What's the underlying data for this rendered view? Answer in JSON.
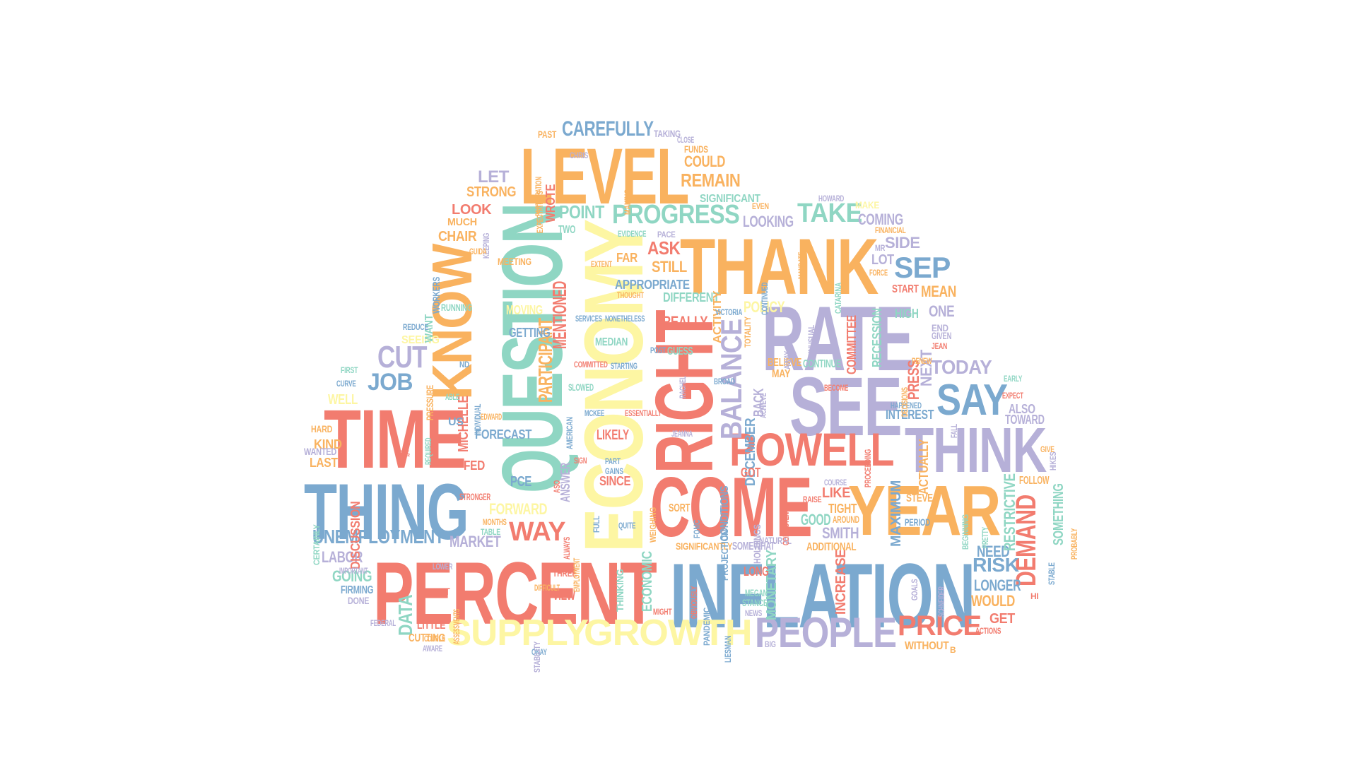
{
  "palette": {
    "red": "#f27c6f",
    "blue": "#7ba9cf",
    "yellow": "#fdf6a3",
    "teal": "#8fd6c3",
    "purple": "#b6b0d8",
    "orange": "#f9b25f",
    "background": "#ffffff"
  },
  "words": [
    {
      "text": "PERCENT",
      "color": "red"
    },
    {
      "text": "INFLATION",
      "color": "blue"
    },
    {
      "text": "TIME",
      "color": "red"
    },
    {
      "text": "THING",
      "color": "blue"
    },
    {
      "text": "RATE",
      "color": "purple"
    },
    {
      "text": "SEE",
      "color": "purple"
    },
    {
      "text": "THANK",
      "color": "orange"
    },
    {
      "text": "COME",
      "color": "red"
    },
    {
      "text": "YEAR",
      "color": "orange"
    },
    {
      "text": "THINK",
      "color": "purple"
    },
    {
      "text": "LEVEL",
      "color": "orange"
    },
    {
      "text": "QUESTION",
      "color": "teal"
    },
    {
      "text": "ECONOMY",
      "color": "yellow"
    },
    {
      "text": "RIGHT",
      "color": "red"
    },
    {
      "text": "KNOW",
      "color": "orange"
    },
    {
      "text": "POWELL",
      "color": "red"
    },
    {
      "text": "PEOPLE",
      "color": "purple"
    },
    {
      "text": "SUPPLY",
      "color": "yellow"
    },
    {
      "text": "GROWTH",
      "color": "yellow"
    },
    {
      "text": "PRICE",
      "color": "red"
    },
    {
      "text": "SAY",
      "color": "blue"
    },
    {
      "text": "PROGRESS",
      "color": "teal"
    },
    {
      "text": "SEP",
      "color": "blue"
    },
    {
      "text": "TAKE",
      "color": "teal"
    },
    {
      "text": "CAREFULLY",
      "color": "blue"
    },
    {
      "text": "BALANCE",
      "color": "purple"
    },
    {
      "text": "UNEMPLOYMENT",
      "color": "blue"
    },
    {
      "text": "JOB",
      "color": "blue"
    },
    {
      "text": "CUT",
      "color": "purple"
    },
    {
      "text": "WAY",
      "color": "red"
    },
    {
      "text": "DEMAND",
      "color": "red"
    },
    {
      "text": "RISK",
      "color": "blue"
    },
    {
      "text": "TODAY",
      "color": "purple"
    },
    {
      "text": "REMAIN",
      "color": "orange"
    },
    {
      "text": "COULD",
      "color": "orange"
    },
    {
      "text": "POINT",
      "color": "teal"
    },
    {
      "text": "LOOK",
      "color": "red"
    },
    {
      "text": "LET",
      "color": "purple"
    },
    {
      "text": "STRONG",
      "color": "orange"
    },
    {
      "text": "CHAIR",
      "color": "orange"
    },
    {
      "text": "MUCH",
      "color": "orange"
    },
    {
      "text": "ASK",
      "color": "red"
    },
    {
      "text": "STILL",
      "color": "orange"
    },
    {
      "text": "FAR",
      "color": "orange"
    },
    {
      "text": "APPROPRIATE",
      "color": "blue"
    },
    {
      "text": "MENTIONED",
      "color": "red"
    },
    {
      "text": "PARTICIPANT",
      "color": "orange"
    },
    {
      "text": "REALLY",
      "color": "red"
    },
    {
      "text": "DIFFERENT",
      "color": "teal"
    },
    {
      "text": "MEDIAN",
      "color": "teal"
    },
    {
      "text": "LIKELY",
      "color": "red"
    },
    {
      "text": "SINCE",
      "color": "red"
    },
    {
      "text": "FORECAST",
      "color": "blue"
    },
    {
      "text": "FORWARD",
      "color": "yellow"
    },
    {
      "text": "MARKET",
      "color": "purple"
    },
    {
      "text": "LABOR",
      "color": "purple"
    },
    {
      "text": "GOING",
      "color": "teal"
    },
    {
      "text": "DATA",
      "color": "teal"
    },
    {
      "text": "LITTLE",
      "color": "red"
    },
    {
      "text": "CUTTING",
      "color": "orange"
    },
    {
      "text": "MICHELLE",
      "color": "red"
    },
    {
      "text": "ANSWER",
      "color": "purple"
    },
    {
      "text": "ECONOMIC",
      "color": "teal"
    },
    {
      "text": "MONETARY",
      "color": "teal"
    },
    {
      "text": "INCREASE",
      "color": "red"
    },
    {
      "text": "LONGER",
      "color": "blue"
    },
    {
      "text": "WOULD",
      "color": "orange"
    },
    {
      "text": "NEED",
      "color": "blue"
    },
    {
      "text": "GET",
      "color": "red"
    },
    {
      "text": "WITHOUT",
      "color": "orange"
    },
    {
      "text": "GOOD",
      "color": "teal"
    },
    {
      "text": "SMITH",
      "color": "purple"
    },
    {
      "text": "LIKE",
      "color": "red"
    },
    {
      "text": "TIGHT",
      "color": "orange"
    },
    {
      "text": "ADDITIONAL",
      "color": "orange"
    },
    {
      "text": "MAXIMUM",
      "color": "blue"
    },
    {
      "text": "PERIOD",
      "color": "blue"
    },
    {
      "text": "STEVE",
      "color": "orange"
    },
    {
      "text": "ACTUALLY",
      "color": "orange"
    },
    {
      "text": "INTEREST",
      "color": "blue"
    },
    {
      "text": "PRESS",
      "color": "red"
    },
    {
      "text": "ALSO",
      "color": "purple"
    },
    {
      "text": "TOWARD",
      "color": "purple"
    },
    {
      "text": "FOLLOW",
      "color": "orange"
    },
    {
      "text": "RESTRICTIVE",
      "color": "teal"
    },
    {
      "text": "SOMETHING",
      "color": "teal"
    },
    {
      "text": "HIGH",
      "color": "teal"
    },
    {
      "text": "ONE",
      "color": "purple"
    },
    {
      "text": "MEAN",
      "color": "orange"
    },
    {
      "text": "START",
      "color": "red"
    },
    {
      "text": "LOT",
      "color": "purple"
    },
    {
      "text": "SIDE",
      "color": "purple"
    },
    {
      "text": "COMING",
      "color": "purple"
    },
    {
      "text": "LOOKING",
      "color": "purple"
    },
    {
      "text": "COMMITTEE",
      "color": "red"
    },
    {
      "text": "RECESSION",
      "color": "teal"
    },
    {
      "text": "NEXT",
      "color": "purple"
    },
    {
      "text": "DECEMBER",
      "color": "blue"
    },
    {
      "text": "POLICY",
      "color": "yellow"
    },
    {
      "text": "GUESS",
      "color": "teal"
    },
    {
      "text": "ACTIVITY",
      "color": "orange"
    },
    {
      "text": "SIGNIFICANT",
      "color": "teal"
    },
    {
      "text": "WROTE",
      "color": "red"
    },
    {
      "text": "TWO",
      "color": "teal"
    },
    {
      "text": "GETTING",
      "color": "blue"
    },
    {
      "text": "MOVING",
      "color": "yellow"
    },
    {
      "text": "SEEING",
      "color": "yellow"
    },
    {
      "text": "PCE",
      "color": "blue"
    },
    {
      "text": "KIND",
      "color": "orange"
    },
    {
      "text": "LAST",
      "color": "orange"
    },
    {
      "text": "HARD",
      "color": "orange"
    },
    {
      "text": "WELL",
      "color": "yellow"
    },
    {
      "text": "FED",
      "color": "red"
    },
    {
      "text": "US",
      "color": "blue"
    },
    {
      "text": "DISCUSSION",
      "color": "red"
    },
    {
      "text": "WANTED",
      "color": "purple"
    },
    {
      "text": "FIRMING",
      "color": "blue"
    },
    {
      "text": "DONE",
      "color": "purple"
    },
    {
      "text": "VIEW",
      "color": "red"
    },
    {
      "text": "YET",
      "color": "red"
    },
    {
      "text": "THREE",
      "color": "red"
    },
    {
      "text": "THINKING",
      "color": "teal"
    },
    {
      "text": "LONG",
      "color": "red"
    },
    {
      "text": "MEGAN",
      "color": "teal"
    },
    {
      "text": "STANCE",
      "color": "teal"
    },
    {
      "text": "PANDEMIC",
      "color": "blue"
    },
    {
      "text": "SIGNIFICANTLY",
      "color": "orange"
    },
    {
      "text": "SOMEWHAT",
      "color": "purple"
    },
    {
      "text": "SORT",
      "color": "orange"
    },
    {
      "text": "BELIEVE",
      "color": "orange"
    },
    {
      "text": "CONTINUE",
      "color": "teal"
    },
    {
      "text": "MAY",
      "color": "orange"
    },
    {
      "text": "BACK",
      "color": "purple"
    },
    {
      "text": "GOT",
      "color": "red"
    },
    {
      "text": "CONDITIONS",
      "color": "blue"
    },
    {
      "text": "PROJECTION",
      "color": "blue"
    },
    {
      "text": "HOLDINGS",
      "color": "purple"
    },
    {
      "text": "NATURAL",
      "color": "purple"
    },
    {
      "text": "AROUND",
      "color": "orange"
    },
    {
      "text": "WAGES",
      "color": "purple"
    },
    {
      "text": "END",
      "color": "purple"
    },
    {
      "text": "GIVEN",
      "color": "purple"
    },
    {
      "text": "JEAN",
      "color": "red"
    },
    {
      "text": "EXPECT",
      "color": "red"
    },
    {
      "text": "EARLY",
      "color": "teal"
    },
    {
      "text": "GIVE",
      "color": "orange"
    },
    {
      "text": "HIKES",
      "color": "purple"
    },
    {
      "text": "PRETTY",
      "color": "teal"
    },
    {
      "text": "BEGINNING",
      "color": "teal"
    },
    {
      "text": "STABLE",
      "color": "blue"
    },
    {
      "text": "HI",
      "color": "red"
    },
    {
      "text": "ACTIONS",
      "color": "red"
    },
    {
      "text": "GOALS",
      "color": "purple"
    },
    {
      "text": "FINANCIAL",
      "color": "orange"
    },
    {
      "text": "EVEN",
      "color": "orange"
    },
    {
      "text": "MAKE",
      "color": "yellow"
    },
    {
      "text": "HOWARD",
      "color": "purple"
    },
    {
      "text": "PAST",
      "color": "orange"
    },
    {
      "text": "CHRIS",
      "color": "purple"
    },
    {
      "text": "MAKING",
      "color": "orange"
    },
    {
      "text": "TAKING",
      "color": "purple"
    },
    {
      "text": "CLOSE",
      "color": "purple"
    },
    {
      "text": "FUNDS",
      "color": "orange"
    },
    {
      "text": "MEETING",
      "color": "orange"
    },
    {
      "text": "RUNNING",
      "color": "teal"
    },
    {
      "text": "WANT",
      "color": "teal"
    },
    {
      "text": "WORKERS",
      "color": "blue"
    },
    {
      "text": "REDUCE",
      "color": "blue"
    },
    {
      "text": "PRESSURE",
      "color": "orange"
    },
    {
      "text": "FIRST",
      "color": "teal"
    },
    {
      "text": "CURVE",
      "color": "blue"
    },
    {
      "text": "CERTAINLY",
      "color": "teal"
    },
    {
      "text": "STRONGER",
      "color": "red"
    },
    {
      "text": "MONTHS",
      "color": "orange"
    },
    {
      "text": "TABLE",
      "color": "teal"
    },
    {
      "text": "EVIDENCE",
      "color": "teal"
    },
    {
      "text": "PACE",
      "color": "purple"
    },
    {
      "text": "EXTENT",
      "color": "orange"
    },
    {
      "text": "THOUGHT",
      "color": "orange"
    },
    {
      "text": "SERVICES",
      "color": "blue"
    },
    {
      "text": "NONETHELESS",
      "color": "blue"
    },
    {
      "text": "COMMITTED",
      "color": "red"
    },
    {
      "text": "STARTING",
      "color": "blue"
    },
    {
      "text": "SLOWED",
      "color": "teal"
    },
    {
      "text": "POST",
      "color": "blue"
    },
    {
      "text": "ESSENTIALLY",
      "color": "red"
    },
    {
      "text": "MCKEE",
      "color": "blue"
    },
    {
      "text": "AMERICAN",
      "color": "blue"
    },
    {
      "text": "PART",
      "color": "blue"
    },
    {
      "text": "GAINS",
      "color": "blue"
    },
    {
      "text": "FULL",
      "color": "blue"
    },
    {
      "text": "QUITE",
      "color": "blue"
    },
    {
      "text": "WEIGHING",
      "color": "orange"
    },
    {
      "text": "JEANNA",
      "color": "purple"
    },
    {
      "text": "RACHEL",
      "color": "purple"
    },
    {
      "text": "BROAD",
      "color": "blue"
    },
    {
      "text": "VICTORIA",
      "color": "blue"
    },
    {
      "text": "TOTALITY",
      "color": "orange"
    },
    {
      "text": "AWAY",
      "color": "purple"
    },
    {
      "text": "UNUSUAL",
      "color": "purple"
    },
    {
      "text": "CATARINA",
      "color": "teal"
    },
    {
      "text": "FORCE",
      "color": "orange"
    },
    {
      "text": "MR",
      "color": "purple"
    },
    {
      "text": "HAPPENED",
      "color": "blue"
    },
    {
      "text": "BECOME",
      "color": "red"
    },
    {
      "text": "PROCEEDING",
      "color": "red"
    },
    {
      "text": "RAISE",
      "color": "red"
    },
    {
      "text": "COURSE",
      "color": "purple"
    },
    {
      "text": "CONSISTENT",
      "color": "red"
    },
    {
      "text": "FOMC",
      "color": "blue"
    },
    {
      "text": "OBVIOUSLY",
      "color": "red"
    },
    {
      "text": "NEWS",
      "color": "purple"
    },
    {
      "text": "BIG",
      "color": "purple"
    },
    {
      "text": "LIESMAN",
      "color": "blue"
    },
    {
      "text": "OKAY",
      "color": "blue"
    },
    {
      "text": "FEDERAL",
      "color": "purple"
    },
    {
      "text": "AWARE",
      "color": "purple"
    },
    {
      "text": "COUPLE",
      "color": "orange"
    },
    {
      "text": "LOWER",
      "color": "purple"
    },
    {
      "text": "IMPORTANT",
      "color": "purple"
    },
    {
      "text": "DIFFICULT",
      "color": "orange"
    },
    {
      "text": "STABILITY",
      "color": "purple"
    },
    {
      "text": "ASSESSMENTS",
      "color": "orange"
    },
    {
      "text": "EMPLOYMENT",
      "color": "orange"
    },
    {
      "text": "ALWAYS",
      "color": "red"
    },
    {
      "text": "ASO",
      "color": "red"
    },
    {
      "text": "SIGN",
      "color": "red"
    },
    {
      "text": "2½",
      "color": "red"
    },
    {
      "text": "EDWARD",
      "color": "orange"
    },
    {
      "text": "ABLE",
      "color": "teal"
    },
    {
      "text": "REQUIRED",
      "color": "teal"
    },
    {
      "text": "MIGHT",
      "color": "red"
    },
    {
      "text": "KEEPING",
      "color": "purple"
    },
    {
      "text": "GUIDA",
      "color": "orange"
    },
    {
      "text": "EXPECTATIONS",
      "color": "orange"
    },
    {
      "text": "PARTICIPATION",
      "color": "orange"
    },
    {
      "text": "SCHNEIDER",
      "color": "purple"
    },
    {
      "text": "FALL",
      "color": "purple"
    },
    {
      "text": "PROBABLY",
      "color": "orange"
    },
    {
      "text": "MANDATE",
      "color": "orange"
    },
    {
      "text": "CONTINUED",
      "color": "blue"
    },
    {
      "text": "ACHIEVE",
      "color": "purple"
    },
    {
      "text": "DECISIONS",
      "color": "orange"
    },
    {
      "text": "RENEW",
      "color": "orange"
    },
    {
      "text": "INDIVIDUAL",
      "color": "blue"
    },
    {
      "text": "ND",
      "color": "blue"
    },
    {
      "text": "B",
      "color": "orange"
    }
  ]
}
